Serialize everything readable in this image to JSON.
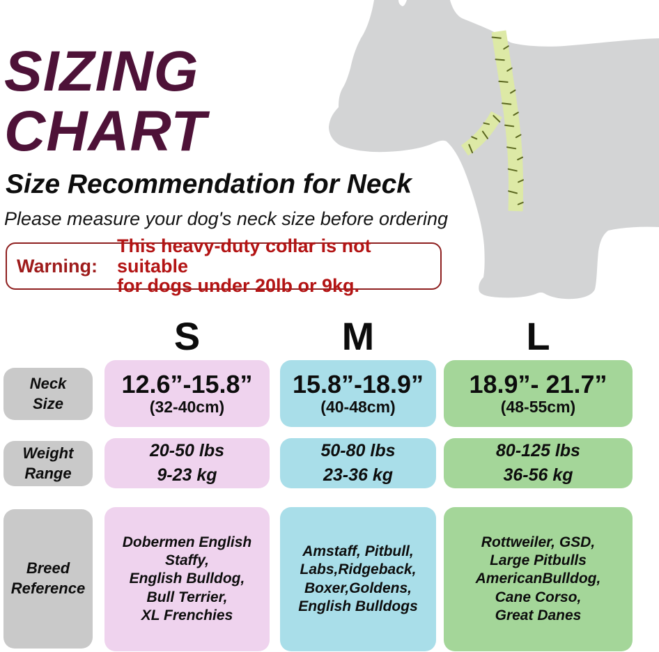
{
  "header": {
    "title": "SIZING\nCHART",
    "subtitle": "Size Recommendation for Neck",
    "note": "Please measure your dog's neck size before ordering"
  },
  "warning": {
    "label": "Warning:",
    "message": "This heavy-duty collar is not suitable\nfor dogs under 20lb or 9kg."
  },
  "chart_data": {
    "type": "table",
    "title": "Size Recommendation for Neck",
    "columns": [
      "S",
      "M",
      "L"
    ],
    "row_labels": [
      "Neck\nSize",
      "Weight\nRange",
      "Breed\nReference"
    ],
    "neck_size_inches": [
      "12.6”-15.8”",
      "15.8”-18.9”",
      "18.9”- 21.7”"
    ],
    "neck_size_cm": [
      "(32-40cm)",
      "(40-48cm)",
      "(48-55cm)"
    ],
    "weight_range": [
      "20-50 lbs\n9-23 kg",
      "50-80 lbs\n23-36 kg",
      "80-125 lbs\n36-56 kg"
    ],
    "breed_reference": [
      "Dobermen English\nStaffy,\nEnglish Bulldog,\nBull Terrier,\nXL Frenchies",
      "Amstaff, Pitbull,\nLabs,Ridgeback,\nBoxer,Goldens,\nEnglish Bulldogs",
      "Rottweiler, GSD,\nLarge Pitbulls\nAmericanBulldog,\nCane Corso,\nGreat Danes"
    ]
  },
  "colors": {
    "title_plum": "#4e1238",
    "warning_border": "#8e1f1f",
    "warning_label": "#9e1b1b",
    "warning_text": "#b31414",
    "label_cell_gray": "#c9c9c9",
    "size_s_pink": "#efd3ee",
    "size_m_blue": "#a9dee9",
    "size_l_green": "#a4d699",
    "dog_silhouette_gray": "#d3d4d5",
    "tape_green": "#dde9a6",
    "tape_tick_olive": "#5a661f"
  }
}
